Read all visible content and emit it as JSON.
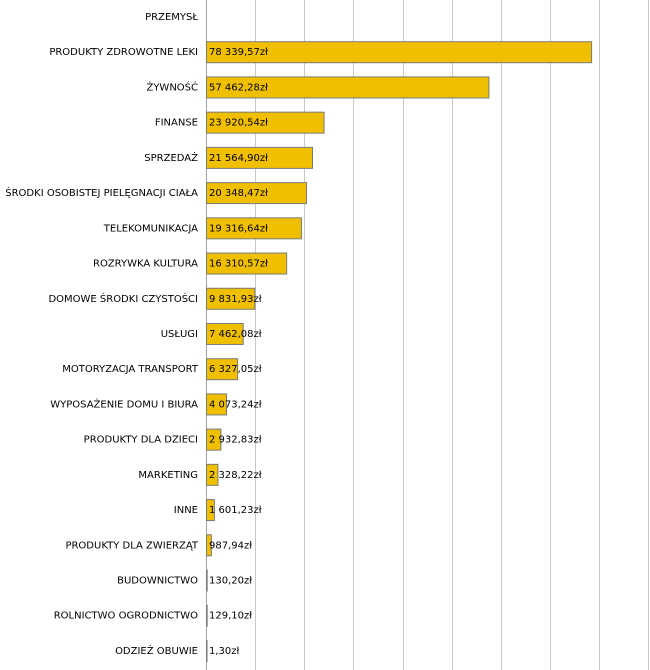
{
  "chart_data": {
    "type": "hbar",
    "categories": [
      "PRZEMYSŁ",
      "PRODUKTY ZDROWOTNE LEKI",
      "ŻYWNOŚĆ",
      "FINANSE",
      "SPRZEDAŻ",
      "ŚRODKI OSOBISTEJ PIELĘGNACJI CIAŁA",
      "TELEKOMUNIKACJA",
      "ROZRYWKA KULTURA",
      "DOMOWE ŚRODKI CZYSTOŚCI",
      "USŁUGI",
      "MOTORYZACJA TRANSPORT",
      "WYPOSAŻENIE DOMU I BIURA",
      "PRODUKTY DLA DZIECI",
      "MARKETING",
      "INNE",
      "PRODUKTY DLA ZWIERZĄT",
      "BUDOWNICTWO",
      "ROLNICTWO OGRODNICTWO",
      "ODZIEŻ OBUWIE"
    ],
    "values": [
      null,
      78339.57,
      57462.28,
      23920.54,
      21564.9,
      20348.47,
      19316.64,
      16310.57,
      9831.93,
      7462.08,
      6327.05,
      4073.24,
      2932.83,
      2328.22,
      1601.23,
      987.94,
      130.2,
      129.1,
      1.3
    ],
    "value_labels": [
      null,
      "78 339,57zł",
      "57 462,28zł",
      "23 920,54zł",
      "21 564,90zł",
      "20 348,47zł",
      "19 316,64zł",
      "16 310,57zł",
      "9 831,93zł",
      "7 462,08zł",
      "6 327,05zł",
      "4 073,24zł",
      "2 932,83zł",
      "2 328,22zł",
      "1 601,23zł",
      "987,94zł",
      "130,20zł",
      "129,10zł",
      "1,30zł"
    ],
    "color": "#f0c000",
    "xlim": [
      0,
      90000
    ],
    "xticks": [
      0,
      10000,
      20000,
      30000,
      40000,
      50000,
      60000,
      70000,
      80000,
      90000
    ],
    "grid": true
  }
}
